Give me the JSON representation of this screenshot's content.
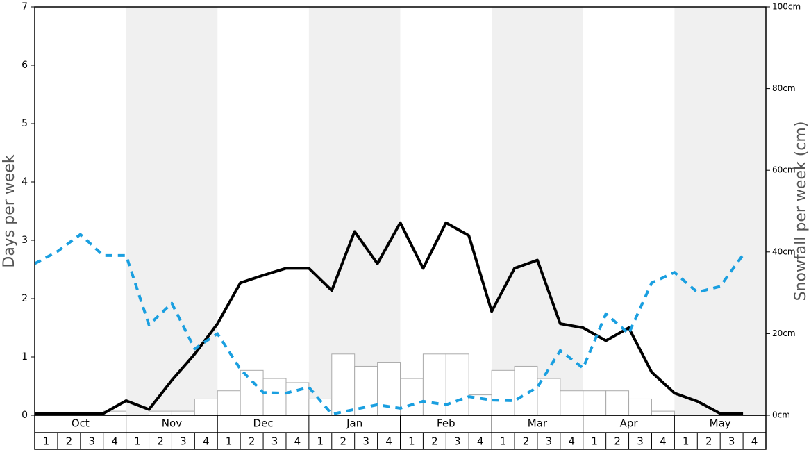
{
  "chart_data": {
    "type": "bar-line",
    "y_label": "Days per week",
    "y2_label": "Snowfall per week (cm)",
    "months": [
      "Oct",
      "Nov",
      "Dec",
      "Jan",
      "Feb",
      "Mar",
      "Apr",
      "May"
    ],
    "categories": [
      "1",
      "2",
      "3",
      "4",
      "1",
      "2",
      "3",
      "4",
      "1",
      "2",
      "3",
      "4",
      "1",
      "2",
      "3",
      "4",
      "1",
      "2",
      "3",
      "4",
      "1",
      "2",
      "3",
      "4",
      "1",
      "2",
      "3",
      "4",
      "1",
      "2",
      "3",
      "4"
    ],
    "ylim": [
      0,
      7
    ],
    "yticks": [
      0,
      1,
      2,
      3,
      4,
      5,
      6,
      7
    ],
    "y2lim": [
      0,
      100
    ],
    "y2ticks": [
      {
        "value": 0,
        "label": "0cm"
      },
      {
        "value": 20,
        "label": "20cm"
      },
      {
        "value": 40,
        "label": "40cm"
      },
      {
        "value": 60,
        "label": "60cm"
      },
      {
        "value": 80,
        "label": "80cm"
      },
      {
        "value": 100,
        "label": "100cm"
      }
    ],
    "series": [
      {
        "type": "bar",
        "axis": "y2",
        "color": "#ffffff",
        "values": [
          0,
          0,
          0,
          1,
          0,
          1,
          1,
          4,
          6,
          11,
          9,
          8,
          4,
          15,
          12,
          13,
          9,
          15,
          15,
          5,
          11,
          12,
          9,
          6,
          6,
          6,
          4,
          1,
          0,
          0,
          0,
          0
        ]
      },
      {
        "type": "line",
        "color": "#000000",
        "values": [
          0.03,
          0.03,
          0.03,
          0.03,
          0.25,
          0.1,
          0.6,
          1.05,
          1.57,
          2.27,
          2.4,
          2.52,
          2.52,
          2.14,
          3.15,
          2.6,
          3.3,
          2.52,
          3.3,
          3.08,
          1.78,
          2.52,
          2.66,
          1.57,
          1.5,
          1.28,
          1.5,
          0.74,
          0.38,
          0.24,
          0.03,
          0.03
        ]
      },
      {
        "type": "dashed-line",
        "color": "#1a9fe0",
        "values": [
          2.6,
          2.81,
          3.1,
          2.74,
          2.74,
          1.55,
          1.92,
          1.14,
          1.4,
          0.79,
          0.39,
          0.38,
          0.48,
          0.02,
          0.1,
          0.18,
          0.12,
          0.24,
          0.18,
          0.32,
          0.26,
          0.25,
          0.48,
          1.11,
          0.81,
          1.74,
          1.4,
          2.27,
          2.45,
          2.11,
          2.21,
          2.75
        ]
      }
    ]
  }
}
